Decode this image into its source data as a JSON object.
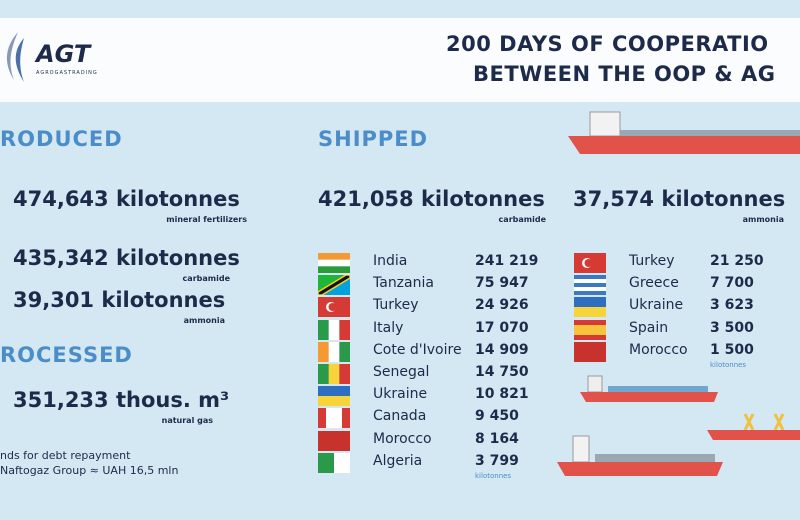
{
  "logo": {
    "name": "AGT",
    "subtitle": "AGROGASTRADING"
  },
  "title": [
    "200 DAYS OF COOPERATIO",
    "BETWEEN THE OOP & AG"
  ],
  "produced": {
    "heading": "RODUCED",
    "items": [
      {
        "amount": "474,643  kilotonnes",
        "product": "mineral fertilizers"
      },
      {
        "amount": "435,342 kilotonnes",
        "product": "carbamide"
      },
      {
        "amount": "39,301 kilotonnes",
        "product": "ammonia"
      }
    ]
  },
  "processed": {
    "heading": "ROCESSED",
    "amount": "351,233 thous. m³",
    "product": "natural gas"
  },
  "note": [
    "nds for debt repayment",
    "Naftogaz Group ≈ UAH 16,5 mln"
  ],
  "shipped": {
    "heading": "SHIPPED",
    "carbamide": {
      "total": "421,058 kilotonnes",
      "product": "carbamide",
      "unit": "kilotonnes",
      "rows": [
        {
          "country": "India",
          "amount": "241 219"
        },
        {
          "country": "Tanzania",
          "amount": "75 947"
        },
        {
          "country": "Turkey",
          "amount": "24 926"
        },
        {
          "country": "Italy",
          "amount": "17 070"
        },
        {
          "country": "Cote d'Ivoire",
          "amount": "14 909"
        },
        {
          "country": "Senegal",
          "amount": "14 750"
        },
        {
          "country": "Ukraine",
          "amount": "10 821"
        },
        {
          "country": "Canada",
          "amount": "9 450"
        },
        {
          "country": "Morocco",
          "amount": "8 164"
        },
        {
          "country": "Algeria",
          "amount": "3 799"
        }
      ]
    },
    "ammonia": {
      "total": "37,574 kilotonnes",
      "product": "ammonia",
      "unit": "kilotonnes",
      "rows": [
        {
          "country": "Turkey",
          "amount": "21 250"
        },
        {
          "country": "Greece",
          "amount": "7 700"
        },
        {
          "country": "Ukraine",
          "amount": "3 623"
        },
        {
          "country": "Spain",
          "amount": "3 500"
        },
        {
          "country": "Morocco",
          "amount": "1 500"
        }
      ]
    }
  }
}
